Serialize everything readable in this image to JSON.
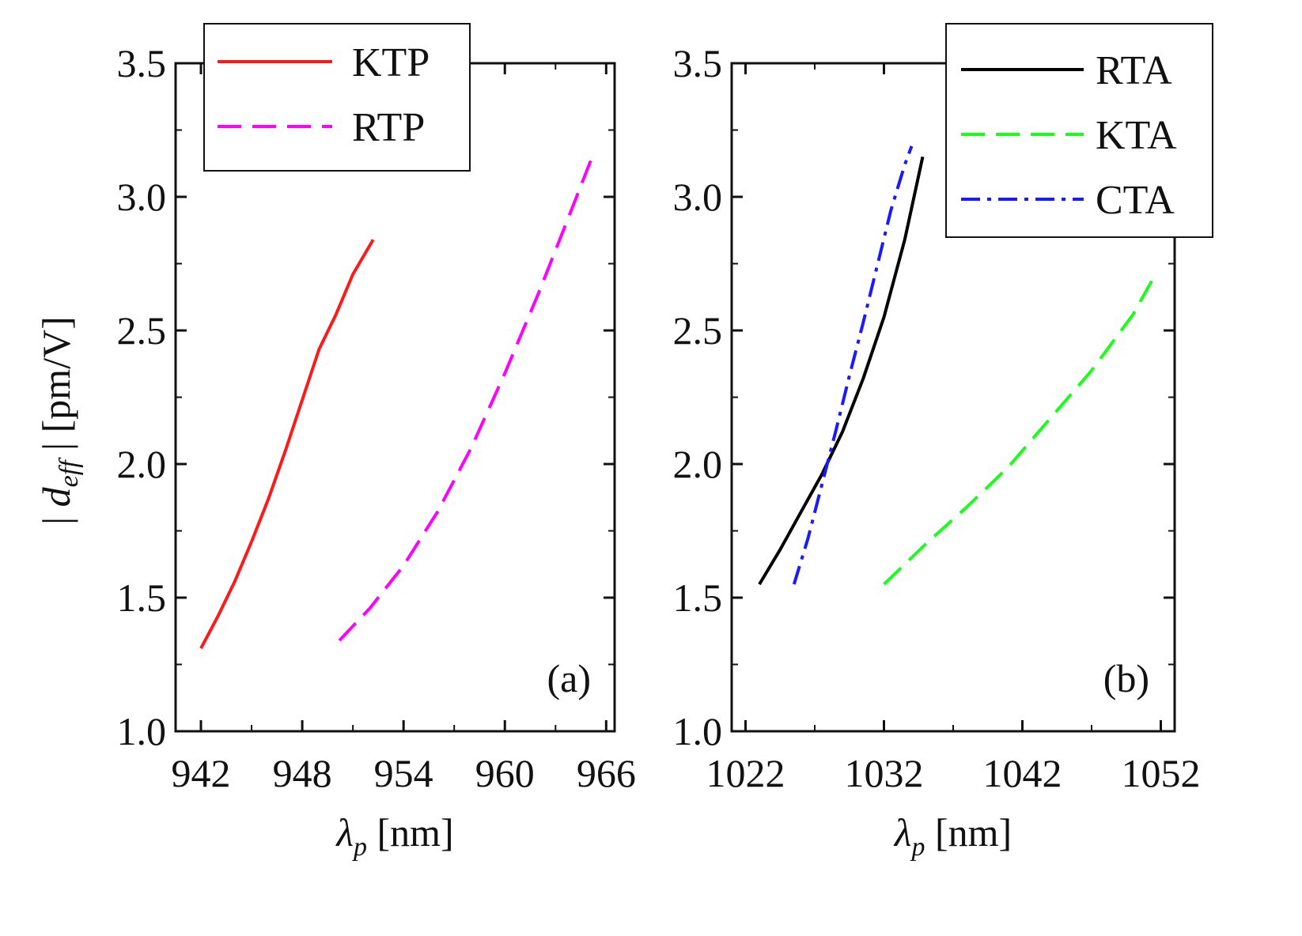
{
  "figure": {
    "ylabel_symbol": "d",
    "ylabel_subscript": "eff",
    "ylabel_unit": "[pm/V]"
  },
  "chart_data": [
    {
      "type": "line",
      "panel_label": "(a)",
      "xlabel_symbol": "λ",
      "xlabel_subscript": "p",
      "xlabel_unit": "[nm]",
      "xlim": [
        940.5,
        966.5
      ],
      "ylim": [
        1.0,
        3.5
      ],
      "xticks": [
        942,
        948,
        954,
        960,
        966
      ],
      "xtick_labels": [
        "942",
        "948",
        "954",
        "960",
        "966"
      ],
      "yticks": [
        1.0,
        1.5,
        2.0,
        2.5,
        3.0,
        3.5
      ],
      "ytick_labels": [
        "1.0",
        "1.5",
        "2.0",
        "2.5",
        "3.0",
        "3.5"
      ],
      "legend_position": "top-left",
      "series": [
        {
          "name": "KTP",
          "color": "#ff1a1a",
          "dash": "solid",
          "x": [
            942.0,
            943.0,
            944.0,
            945.0,
            946.0,
            947.0,
            948.0,
            949.0,
            950.0,
            951.0,
            952.2
          ],
          "y": [
            1.31,
            1.43,
            1.56,
            1.71,
            1.87,
            2.05,
            2.24,
            2.43,
            2.56,
            2.71,
            2.84
          ]
        },
        {
          "name": "RTP",
          "color": "#ff00ff",
          "dash": "dashed",
          "x": [
            950.2,
            952.0,
            954.0,
            956.0,
            958.0,
            960.0,
            962.0,
            964.0,
            965.3
          ],
          "y": [
            1.34,
            1.46,
            1.62,
            1.82,
            2.06,
            2.34,
            2.64,
            2.96,
            3.17
          ]
        }
      ]
    },
    {
      "type": "line",
      "panel_label": "(b)",
      "xlabel_symbol": "λ",
      "xlabel_subscript": "p",
      "xlabel_unit": "[nm]",
      "xlim": [
        1021,
        1053
      ],
      "ylim": [
        1.0,
        3.5
      ],
      "xticks": [
        1022,
        1032,
        1042,
        1052
      ],
      "xtick_labels": [
        "1022",
        "1032",
        "1042",
        "1052"
      ],
      "yticks": [
        1.0,
        1.5,
        2.0,
        2.5,
        3.0,
        3.5
      ],
      "ytick_labels": [
        "1.0",
        "1.5",
        "2.0",
        "2.5",
        "3.0",
        "3.5"
      ],
      "legend_position": "top-right",
      "series": [
        {
          "name": "RTA",
          "color": "#000000",
          "dash": "solid",
          "x": [
            1023.0,
            1024.5,
            1026.0,
            1027.5,
            1029.0,
            1030.5,
            1032.0,
            1033.5,
            1034.8
          ],
          "y": [
            1.55,
            1.68,
            1.82,
            1.96,
            2.12,
            2.32,
            2.55,
            2.84,
            3.15
          ]
        },
        {
          "name": "KTA",
          "color": "#1aff1a",
          "dash": "dashed",
          "x": [
            1032.0,
            1035.0,
            1038.0,
            1041.0,
            1044.0,
            1047.0,
            1050.0,
            1051.5
          ],
          "y": [
            1.55,
            1.7,
            1.84,
            1.99,
            2.17,
            2.35,
            2.56,
            2.7
          ]
        },
        {
          "name": "CTA",
          "color": "#1a1aff",
          "dash": "dashdot",
          "x": [
            1025.5,
            1026.5,
            1027.5,
            1028.5,
            1029.5,
            1030.5,
            1031.5,
            1032.5,
            1033.5,
            1034.0
          ],
          "y": [
            1.55,
            1.72,
            1.92,
            2.12,
            2.33,
            2.53,
            2.74,
            2.95,
            3.12,
            3.19
          ]
        }
      ]
    }
  ]
}
